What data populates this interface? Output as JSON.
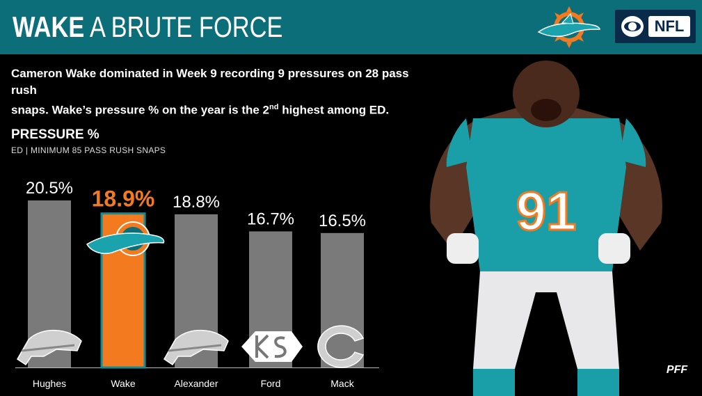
{
  "header": {
    "title_bold": "WAKE",
    "title_rest": " A BRUTE FORCE",
    "network": "NFL"
  },
  "subtitle": {
    "line1": "Cameron Wake dominated in Week 9 recording 9 pressures on 28 pass rush",
    "line2_pre": "snaps. Wake’s pressure % on the year is the 2",
    "line2_sup": "nd",
    "line2_post": " highest among ED."
  },
  "chart_data": {
    "type": "bar",
    "title": "PRESSURE %",
    "subtitle": "ED | MINIMUM 85 PASS RUSH SNAPS",
    "categories": [
      "Hughes",
      "Wake",
      "Alexander",
      "Ford",
      "Mack"
    ],
    "values": [
      20.5,
      18.9,
      18.8,
      16.7,
      16.5
    ],
    "value_labels": [
      "20.5%",
      "18.9%",
      "18.8%",
      "16.7%",
      "16.5%"
    ],
    "team_logos": [
      "bills-logo",
      "dolphins-logo",
      "bills-logo",
      "chiefs-logo",
      "bears-logo"
    ],
    "highlight_index": 1,
    "colors": {
      "bar": "#7a7a7a",
      "highlight": "#f47a20",
      "highlight_border": "#0b8f9a"
    },
    "ylim": [
      0,
      20.5
    ]
  },
  "colors": {
    "header": "#0b6e78",
    "background": "#000000",
    "accent": "#f47a20"
  },
  "watermark": "PFF"
}
